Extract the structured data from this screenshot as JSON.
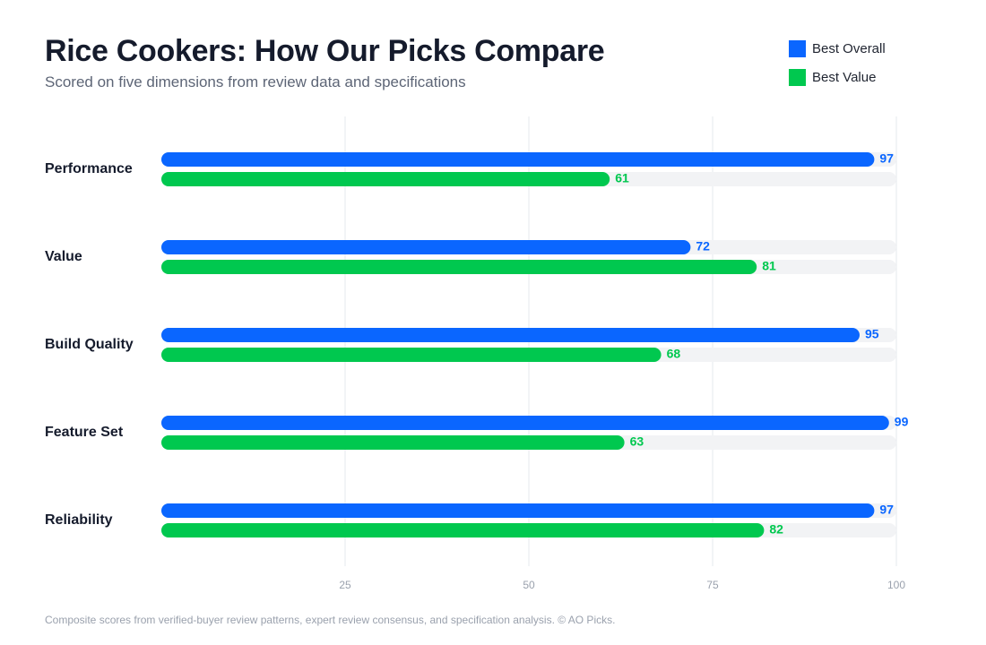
{
  "header": {
    "title": "Rice Cookers: How Our Picks Compare",
    "subtitle": "Scored on five dimensions from review data and specifications"
  },
  "footer": {
    "note": "Composite scores from verified-buyer review patterns, expert review consensus, and specification analysis. © AO Picks."
  },
  "colors": {
    "best_overall": "#0a66ff",
    "best_value": "#00c84f",
    "track": "#f2f3f5",
    "grid": "#e6e8ec",
    "tick_text": "#9aa1ad",
    "category_text": "#151b2c"
  },
  "chart_data": {
    "type": "bar",
    "orientation": "horizontal",
    "title": "Rice Cookers: How Our Picks Compare",
    "subtitle": "Scored on five dimensions from review data and specifications",
    "categories": [
      "Performance",
      "Value",
      "Build Quality",
      "Feature Set",
      "Reliability"
    ],
    "series": [
      {
        "name": "Best Overall",
        "color": "#0a66ff",
        "values": [
          97,
          72,
          95,
          99,
          97
        ]
      },
      {
        "name": "Best Value",
        "color": "#00c84f",
        "values": [
          61,
          81,
          68,
          63,
          82
        ]
      }
    ],
    "xlim": [
      0,
      100
    ],
    "xticks": [
      25,
      50,
      75,
      100
    ],
    "grid": true,
    "legend_position": "top-right",
    "data_labels": true
  }
}
